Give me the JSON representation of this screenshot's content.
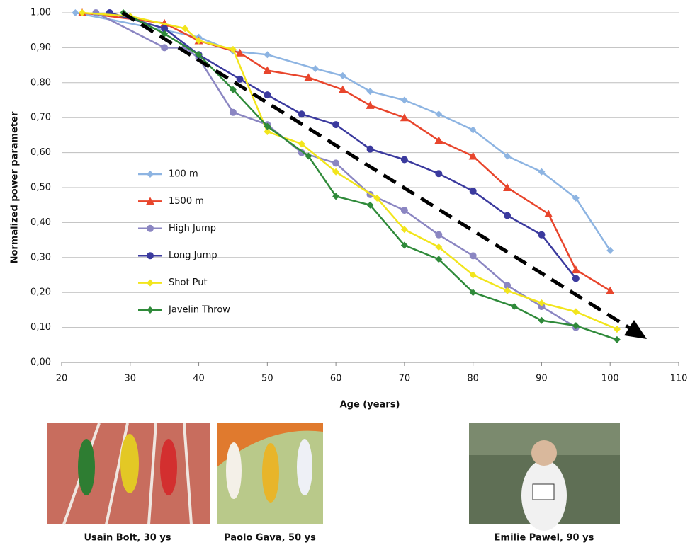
{
  "chart_data": {
    "type": "line",
    "x_label": "Age (years)",
    "y_label": "Normalized power parameter",
    "xlim": [
      20,
      110
    ],
    "xticks": [
      20,
      30,
      40,
      50,
      60,
      70,
      80,
      90,
      100,
      110
    ],
    "ylim": [
      0,
      1
    ],
    "yticks": [
      {
        "value": 0,
        "label": "0,00"
      },
      {
        "value": 0.1,
        "label": "0,10"
      },
      {
        "value": 0.2,
        "label": "0,20"
      },
      {
        "value": 0.3,
        "label": "0,30"
      },
      {
        "value": 0.4,
        "label": "0,40"
      },
      {
        "value": 0.5,
        "label": "0,50"
      },
      {
        "value": 0.6,
        "label": "0,60"
      },
      {
        "value": 0.7,
        "label": "0,70"
      },
      {
        "value": 0.8,
        "label": "0,80"
      },
      {
        "value": 0.9,
        "label": "0,90"
      },
      {
        "value": 1,
        "label": "1,00"
      }
    ],
    "grid": true,
    "series": [
      {
        "name": "100 m",
        "color": "#8db4e2",
        "marker": "diamond",
        "x": [
          22,
          35,
          40,
          45,
          50,
          57,
          61,
          65,
          70,
          75,
          80,
          85,
          90,
          95,
          100
        ],
        "values": [
          1.0,
          0.95,
          0.93,
          0.89,
          0.88,
          0.84,
          0.82,
          0.775,
          0.75,
          0.71,
          0.665,
          0.59,
          0.545,
          0.47,
          0.32
        ]
      },
      {
        "name": "1500 m",
        "color": "#e8452c",
        "marker": "triangle",
        "x": [
          23,
          35,
          40,
          46,
          50,
          56,
          61,
          65,
          70,
          75,
          80,
          85,
          91,
          95,
          100
        ],
        "values": [
          1.0,
          0.97,
          0.92,
          0.885,
          0.835,
          0.815,
          0.78,
          0.735,
          0.7,
          0.635,
          0.59,
          0.5,
          0.425,
          0.265,
          0.205
        ]
      },
      {
        "name": "High Jump",
        "color": "#8b86c2",
        "marker": "circle",
        "x": [
          25,
          35,
          38,
          40,
          45,
          50,
          55,
          60,
          65,
          70,
          75,
          80,
          85,
          90,
          95
        ],
        "values": [
          1.0,
          0.9,
          0.9,
          0.87,
          0.715,
          0.68,
          0.6,
          0.57,
          0.48,
          0.435,
          0.365,
          0.305,
          0.22,
          0.16,
          0.1
        ]
      },
      {
        "name": "Long Jump",
        "color": "#3b3a9e",
        "marker": "circle",
        "x": [
          27,
          35,
          40,
          46,
          50,
          55,
          60,
          65,
          70,
          75,
          80,
          85,
          90,
          95
        ],
        "values": [
          1.0,
          0.955,
          0.88,
          0.81,
          0.765,
          0.71,
          0.68,
          0.61,
          0.58,
          0.54,
          0.49,
          0.42,
          0.365,
          0.24
        ]
      },
      {
        "name": "Shot Put",
        "color": "#f2e51c",
        "marker": "diamond",
        "x": [
          23,
          30,
          38,
          40,
          45,
          50,
          55,
          60,
          66,
          70,
          75,
          80,
          85,
          90,
          95,
          101
        ],
        "values": [
          1.0,
          0.99,
          0.955,
          0.92,
          0.895,
          0.66,
          0.625,
          0.545,
          0.47,
          0.38,
          0.33,
          0.25,
          0.205,
          0.17,
          0.145,
          0.095
        ]
      },
      {
        "name": "Javelin Throw",
        "color": "#2f8a3a",
        "marker": "diamond",
        "x": [
          29,
          35,
          40,
          45,
          50,
          56,
          60,
          65,
          70,
          75,
          80,
          86,
          90,
          95,
          101
        ],
        "values": [
          1.0,
          0.94,
          0.88,
          0.78,
          0.675,
          0.59,
          0.475,
          0.45,
          0.335,
          0.295,
          0.2,
          0.16,
          0.12,
          0.105,
          0.065
        ]
      }
    ]
  },
  "photos": [
    {
      "caption": "Usain Bolt, 30 ys"
    },
    {
      "caption": "Paolo Gava, 50 ys"
    },
    {
      "caption": "Emilie Pawel, 90 ys"
    }
  ]
}
